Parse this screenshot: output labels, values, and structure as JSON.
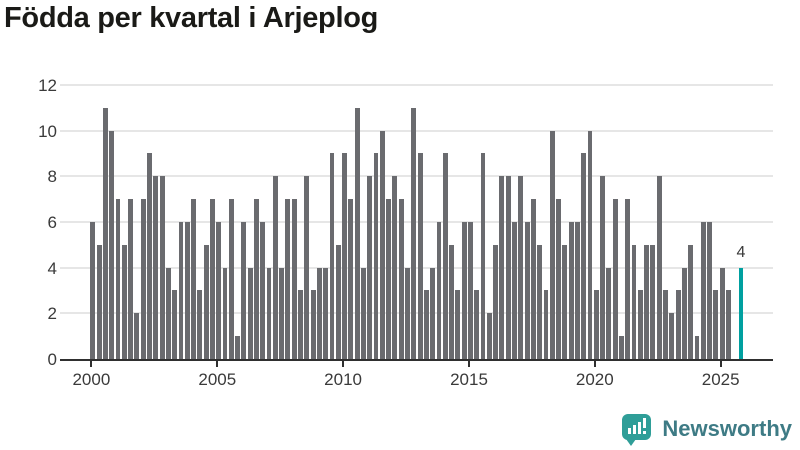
{
  "title": "Födda per kvartal i Arjeplog",
  "chart_data": {
    "type": "bar",
    "title": "Födda per kvartal i Arjeplog",
    "x_start_quarter": "2000-Q1",
    "x_frequency": "quarterly",
    "values": [
      6,
      5,
      11,
      10,
      7,
      5,
      7,
      2,
      7,
      9,
      8,
      8,
      4,
      3,
      6,
      6,
      7,
      3,
      5,
      7,
      6,
      4,
      7,
      1,
      6,
      4,
      7,
      6,
      4,
      8,
      4,
      7,
      7,
      3,
      8,
      3,
      4,
      4,
      9,
      5,
      9,
      7,
      11,
      4,
      8,
      9,
      10,
      7,
      8,
      7,
      4,
      11,
      9,
      3,
      4,
      6,
      9,
      5,
      3,
      6,
      6,
      3,
      9,
      2,
      5,
      8,
      8,
      6,
      8,
      6,
      7,
      5,
      3,
      10,
      7,
      5,
      6,
      6,
      9,
      10,
      3,
      8,
      4,
      7,
      1,
      7,
      5,
      3,
      5,
      5,
      8,
      3,
      2,
      3,
      4,
      5,
      1,
      6,
      6,
      3,
      4,
      3,
      0,
      4
    ],
    "highlight_index": 103,
    "highlight_label": "4",
    "x_tick_labels": [
      "2000",
      "2005",
      "2010",
      "2015",
      "2020",
      "2025"
    ],
    "y_tick_labels": [
      "0",
      "2",
      "4",
      "6",
      "8",
      "10",
      "12"
    ],
    "y_ticks": [
      0,
      2,
      4,
      6,
      8,
      10,
      12
    ],
    "ylim": [
      0,
      12
    ],
    "grid": true,
    "legend": "none",
    "bar_color": "#6a6b6f",
    "highlight_color": "#00a0a0",
    "gridline_color": "#e6e6e6",
    "axis_color": "#2f2f2f",
    "label_color": "#3a3a3a",
    "title_color": "#1a1a17"
  },
  "branding": {
    "logo_text": "Newsworthy",
    "logo_icon": "newsworthy-speech-bubble-bar-chart-icon",
    "icon_color": "#2f9e98",
    "text_color": "#3e7b85"
  }
}
